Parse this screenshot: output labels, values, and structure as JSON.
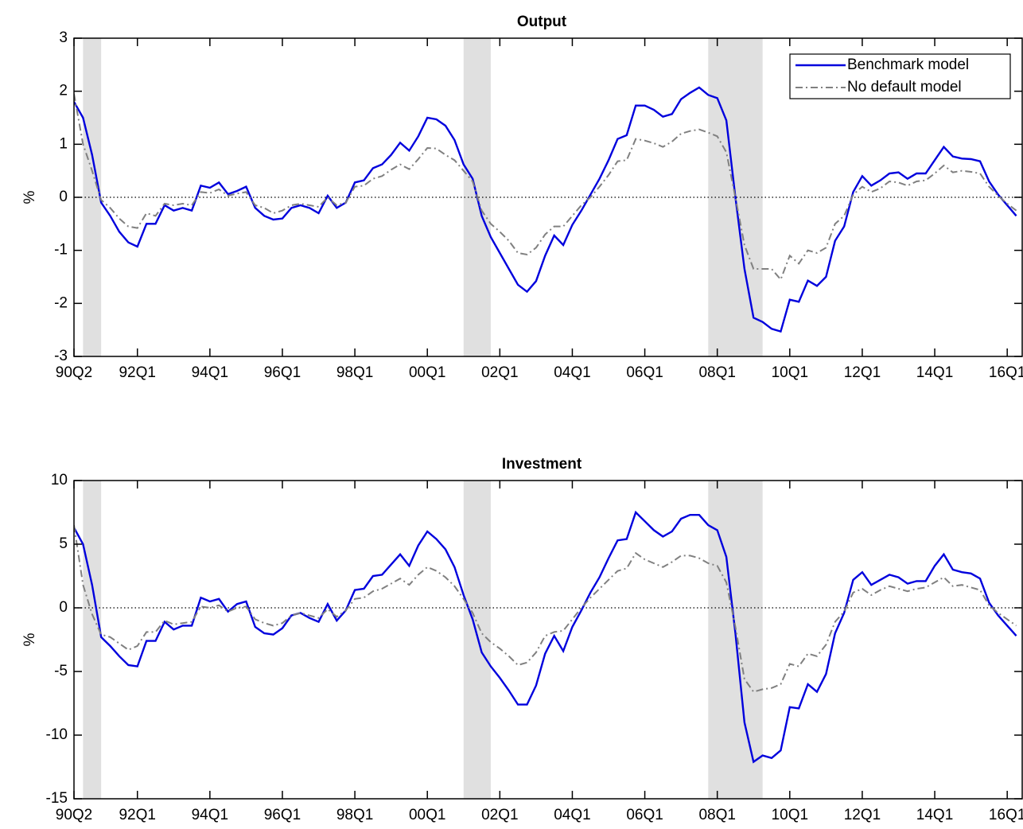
{
  "chart_data": [
    {
      "type": "line",
      "title": "Output",
      "ylabel": "%",
      "categories": [
        "90Q2",
        "90Q3",
        "90Q4",
        "91Q1",
        "91Q2",
        "91Q3",
        "91Q4",
        "92Q1",
        "92Q2",
        "92Q3",
        "92Q4",
        "93Q1",
        "93Q2",
        "93Q3",
        "93Q4",
        "94Q1",
        "94Q2",
        "94Q3",
        "94Q4",
        "95Q1",
        "95Q2",
        "95Q3",
        "95Q4",
        "96Q1",
        "96Q2",
        "96Q3",
        "96Q4",
        "97Q1",
        "97Q2",
        "97Q3",
        "97Q4",
        "98Q1",
        "98Q2",
        "98Q3",
        "98Q4",
        "99Q1",
        "99Q2",
        "99Q3",
        "99Q4",
        "00Q1",
        "00Q2",
        "00Q3",
        "00Q4",
        "01Q1",
        "01Q2",
        "01Q3",
        "01Q4",
        "02Q1",
        "02Q2",
        "02Q3",
        "02Q4",
        "03Q1",
        "03Q2",
        "03Q3",
        "03Q4",
        "04Q1",
        "04Q2",
        "04Q3",
        "04Q4",
        "05Q1",
        "05Q2",
        "05Q3",
        "05Q4",
        "06Q1",
        "06Q2",
        "06Q3",
        "06Q4",
        "07Q1",
        "07Q2",
        "07Q3",
        "07Q4",
        "08Q1",
        "08Q2",
        "08Q3",
        "08Q4",
        "09Q1",
        "09Q2",
        "09Q3",
        "09Q4",
        "10Q1",
        "10Q2",
        "10Q3",
        "10Q4",
        "11Q1",
        "11Q2",
        "11Q3",
        "11Q4",
        "12Q1",
        "12Q2",
        "12Q3",
        "12Q4",
        "13Q1",
        "13Q2",
        "13Q3",
        "13Q4",
        "14Q1",
        "14Q2",
        "14Q3",
        "14Q4",
        "15Q1",
        "15Q2",
        "15Q3",
        "15Q4",
        "16Q1",
        "16Q2"
      ],
      "xticks": [
        "90Q2",
        "92Q1",
        "94Q1",
        "96Q1",
        "98Q1",
        "00Q1",
        "02Q1",
        "04Q1",
        "06Q1",
        "08Q1",
        "10Q1",
        "12Q1",
        "14Q1",
        "16Q1"
      ],
      "ylim": [
        -3,
        3
      ],
      "yticks": [
        -3,
        -2,
        -1,
        0,
        1,
        2,
        3
      ],
      "shaded_periods": [
        [
          "90Q3",
          "91Q1"
        ],
        [
          "01Q1",
          "01Q4"
        ],
        [
          "07Q4",
          "09Q2"
        ]
      ],
      "legend": "northeast",
      "series": [
        {
          "name": "Benchmark model",
          "color": "#0000dd",
          "linestyle": "solid",
          "values": [
            1.8,
            1.5,
            0.8,
            -0.1,
            -0.35,
            -0.65,
            -0.85,
            -0.93,
            -0.5,
            -0.5,
            -0.15,
            -0.25,
            -0.2,
            -0.25,
            0.22,
            0.18,
            0.28,
            0.06,
            0.12,
            0.2,
            -0.2,
            -0.35,
            -0.42,
            -0.4,
            -0.2,
            -0.15,
            -0.2,
            -0.3,
            0.03,
            -0.2,
            -0.1,
            0.28,
            0.32,
            0.55,
            0.62,
            0.8,
            1.03,
            0.88,
            1.15,
            1.5,
            1.47,
            1.35,
            1.08,
            0.62,
            0.35,
            -0.35,
            -0.75,
            -1.05,
            -1.35,
            -1.65,
            -1.78,
            -1.58,
            -1.1,
            -0.72,
            -0.9,
            -0.52,
            -0.25,
            0.05,
            0.35,
            0.7,
            1.1,
            1.17,
            1.73,
            1.73,
            1.65,
            1.52,
            1.57,
            1.85,
            1.97,
            2.07,
            1.93,
            1.87,
            1.45,
            0.0,
            -1.35,
            -2.27,
            -2.35,
            -2.48,
            -2.53,
            -1.93,
            -1.97,
            -1.57,
            -1.67,
            -1.5,
            -0.82,
            -0.55,
            0.1,
            0.4,
            0.22,
            0.32,
            0.45,
            0.47,
            0.35,
            0.45,
            0.45,
            0.7,
            0.95,
            0.77,
            0.73,
            0.72,
            0.68,
            0.3,
            0.05,
            -0.15,
            -0.35
          ]
        },
        {
          "name": "No default model",
          "color": "#808080",
          "linestyle": "dashdot",
          "values": [
            1.95,
            1.0,
            0.5,
            -0.05,
            -0.2,
            -0.4,
            -0.55,
            -0.58,
            -0.3,
            -0.35,
            -0.12,
            -0.15,
            -0.12,
            -0.15,
            0.1,
            0.08,
            0.15,
            0.03,
            0.07,
            0.1,
            -0.15,
            -0.2,
            -0.3,
            -0.25,
            -0.15,
            -0.12,
            -0.15,
            -0.18,
            0.0,
            -0.15,
            -0.1,
            0.2,
            0.22,
            0.35,
            0.4,
            0.52,
            0.62,
            0.53,
            0.72,
            0.93,
            0.92,
            0.8,
            0.7,
            0.5,
            0.3,
            -0.25,
            -0.5,
            -0.65,
            -0.82,
            -1.05,
            -1.08,
            -0.95,
            -0.7,
            -0.55,
            -0.55,
            -0.35,
            -0.15,
            0.0,
            0.2,
            0.42,
            0.68,
            0.7,
            1.1,
            1.07,
            1.02,
            0.95,
            1.05,
            1.2,
            1.25,
            1.28,
            1.22,
            1.15,
            0.85,
            0.0,
            -0.9,
            -1.35,
            -1.35,
            -1.35,
            -1.55,
            -1.1,
            -1.25,
            -1.0,
            -1.05,
            -0.95,
            -0.5,
            -0.35,
            0.05,
            0.2,
            0.1,
            0.17,
            0.3,
            0.28,
            0.22,
            0.3,
            0.32,
            0.45,
            0.6,
            0.47,
            0.5,
            0.48,
            0.45,
            0.2,
            0.03,
            -0.12,
            -0.25
          ]
        }
      ]
    },
    {
      "type": "line",
      "title": "Investment",
      "ylabel": "%",
      "categories": [
        "90Q2",
        "90Q3",
        "90Q4",
        "91Q1",
        "91Q2",
        "91Q3",
        "91Q4",
        "92Q1",
        "92Q2",
        "92Q3",
        "92Q4",
        "93Q1",
        "93Q2",
        "93Q3",
        "93Q4",
        "94Q1",
        "94Q2",
        "94Q3",
        "94Q4",
        "95Q1",
        "95Q2",
        "95Q3",
        "95Q4",
        "96Q1",
        "96Q2",
        "96Q3",
        "96Q4",
        "97Q1",
        "97Q2",
        "97Q3",
        "97Q4",
        "98Q1",
        "98Q2",
        "98Q3",
        "98Q4",
        "99Q1",
        "99Q2",
        "99Q3",
        "99Q4",
        "00Q1",
        "00Q2",
        "00Q3",
        "00Q4",
        "01Q1",
        "01Q2",
        "01Q3",
        "01Q4",
        "02Q1",
        "02Q2",
        "02Q3",
        "02Q4",
        "03Q1",
        "03Q2",
        "03Q3",
        "03Q4",
        "04Q1",
        "04Q2",
        "04Q3",
        "04Q4",
        "05Q1",
        "05Q2",
        "05Q3",
        "05Q4",
        "06Q1",
        "06Q2",
        "06Q3",
        "06Q4",
        "07Q1",
        "07Q2",
        "07Q3",
        "07Q4",
        "08Q1",
        "08Q2",
        "08Q3",
        "08Q4",
        "09Q1",
        "09Q2",
        "09Q3",
        "09Q4",
        "10Q1",
        "10Q2",
        "10Q3",
        "10Q4",
        "11Q1",
        "11Q2",
        "11Q3",
        "11Q4",
        "12Q1",
        "12Q2",
        "12Q3",
        "12Q4",
        "13Q1",
        "13Q2",
        "13Q3",
        "13Q4",
        "14Q1",
        "14Q2",
        "14Q3",
        "14Q4",
        "15Q1",
        "15Q2",
        "15Q3",
        "15Q4",
        "16Q1",
        "16Q2"
      ],
      "xticks": [
        "90Q2",
        "92Q1",
        "94Q1",
        "96Q1",
        "98Q1",
        "00Q1",
        "02Q1",
        "04Q1",
        "06Q1",
        "08Q1",
        "10Q1",
        "12Q1",
        "14Q1",
        "16Q1"
      ],
      "ylim": [
        -15,
        10
      ],
      "yticks": [
        -15,
        -10,
        -5,
        0,
        5,
        10
      ],
      "shaded_periods": [
        [
          "90Q3",
          "91Q1"
        ],
        [
          "01Q1",
          "01Q4"
        ],
        [
          "07Q4",
          "09Q2"
        ]
      ],
      "series": [
        {
          "color": "#0000dd",
          "linestyle": "solid",
          "values": [
            6.3,
            5.0,
            1.8,
            -2.3,
            -3.0,
            -3.8,
            -4.5,
            -4.6,
            -2.6,
            -2.6,
            -1.1,
            -1.7,
            -1.4,
            -1.4,
            0.8,
            0.5,
            0.7,
            -0.3,
            0.3,
            0.5,
            -1.5,
            -2.0,
            -2.1,
            -1.6,
            -0.6,
            -0.4,
            -0.8,
            -1.1,
            0.3,
            -1.0,
            -0.2,
            1.4,
            1.5,
            2.5,
            2.6,
            3.4,
            4.2,
            3.3,
            4.9,
            6.0,
            5.4,
            4.6,
            3.2,
            1.0,
            -0.9,
            -3.5,
            -4.6,
            -5.5,
            -6.5,
            -7.6,
            -7.6,
            -6.1,
            -3.6,
            -2.2,
            -3.4,
            -1.5,
            -0.2,
            1.2,
            2.4,
            3.9,
            5.3,
            5.4,
            7.5,
            6.8,
            6.1,
            5.6,
            6.0,
            7.0,
            7.3,
            7.3,
            6.5,
            6.1,
            4.0,
            -2.0,
            -9.0,
            -12.1,
            -11.6,
            -11.8,
            -11.2,
            -7.8,
            -7.9,
            -6.0,
            -6.6,
            -5.2,
            -2.0,
            -0.4,
            2.2,
            2.8,
            1.8,
            2.2,
            2.6,
            2.4,
            1.9,
            2.1,
            2.1,
            3.3,
            4.2,
            3.0,
            2.8,
            2.7,
            2.3,
            0.4,
            -0.6,
            -1.4,
            -2.2
          ]
        },
        {
          "color": "#808080",
          "linestyle": "dashdot",
          "values": [
            6.5,
            1.8,
            -0.5,
            -2.1,
            -2.3,
            -2.8,
            -3.3,
            -3.0,
            -1.9,
            -1.9,
            -1.0,
            -1.3,
            -1.2,
            -1.1,
            0.1,
            0.0,
            0.2,
            -0.3,
            0.0,
            0.1,
            -0.9,
            -1.2,
            -1.4,
            -1.2,
            -0.6,
            -0.4,
            -0.6,
            -0.8,
            -0.1,
            -0.7,
            -0.2,
            0.7,
            0.8,
            1.3,
            1.5,
            1.9,
            2.3,
            1.8,
            2.6,
            3.2,
            2.9,
            2.4,
            1.7,
            0.7,
            -0.4,
            -2.0,
            -2.7,
            -3.2,
            -3.8,
            -4.5,
            -4.3,
            -3.5,
            -2.2,
            -1.9,
            -1.8,
            -0.9,
            0.0,
            0.8,
            1.5,
            2.2,
            2.9,
            3.1,
            4.3,
            3.8,
            3.5,
            3.2,
            3.6,
            4.1,
            4.1,
            3.9,
            3.5,
            3.3,
            2.0,
            -1.5,
            -5.6,
            -6.6,
            -6.4,
            -6.3,
            -6.0,
            -4.4,
            -4.6,
            -3.6,
            -3.8,
            -2.9,
            -1.1,
            -0.3,
            1.2,
            1.5,
            1.0,
            1.4,
            1.7,
            1.5,
            1.3,
            1.5,
            1.6,
            2.0,
            2.4,
            1.7,
            1.8,
            1.6,
            1.4,
            0.2,
            -0.4,
            -0.9,
            -1.4
          ]
        }
      ]
    }
  ]
}
